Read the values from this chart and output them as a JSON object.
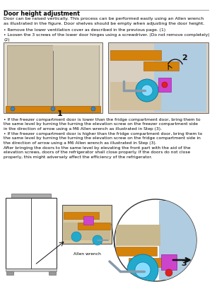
{
  "title": "Door height adjustment",
  "body_text": "Door can be raised vertically. This process can be performed easily using an Allen wrench\nas illustrated in the figure. Door shelves should be empty when adjusting the door height.",
  "bullet1_line1": "• Remove the lower ventilation cover as described in the previous page. (1)",
  "bullet1_line2": "• Loosen the 3 screws of the lower door hinges using a screwdriver. (Do not remove completely)",
  "bullet1_line3": "(2)",
  "bullet2_p1": "• If the freezer compartment door is lower than the fridge compartment door, bring them to\nthe same level by turning the turning the elevation screw on the freezer compartment side\nin the direction of arrow using a M6 Allen wrench as illustrated in Step (3).",
  "bullet2_p2": "• If the freezer compartment door is higher than the fridge compartment door, bring them to\nthe same level by turning the turning the elevation screw on the fridge compartment side in\nthe direction of arrow using a M6 Allen wrench as illustrated in Step (3).",
  "bullet2_p3": "After bringing the doors to the same level by elevating the front part with the aid of the\nelevation screws, doors of the refrigerator shall close properly. If the doors do not close\nproperly, this might adversely affect the efficiency of the refrigerator.",
  "allen_wrench_label": "Allen wrench",
  "bg_color": "#ffffff",
  "text_color": "#000000",
  "separator_color": "#999999",
  "box_edge_color": "#666666",
  "fridge_body_color": "#c8bca0",
  "fridge_door_color": "#b8ac94",
  "orange_color": "#d4820a",
  "blue_color": "#4499cc",
  "cyan_color": "#22aacc",
  "cyan_inner": "#88ddff",
  "magenta_color": "#cc44cc",
  "red_color": "#dd2222",
  "gray_wrench": "#8899aa",
  "light_blue_panel": "#b0cce0",
  "fridge2_color": "#ffffff",
  "fridge2_edge": "#333333"
}
